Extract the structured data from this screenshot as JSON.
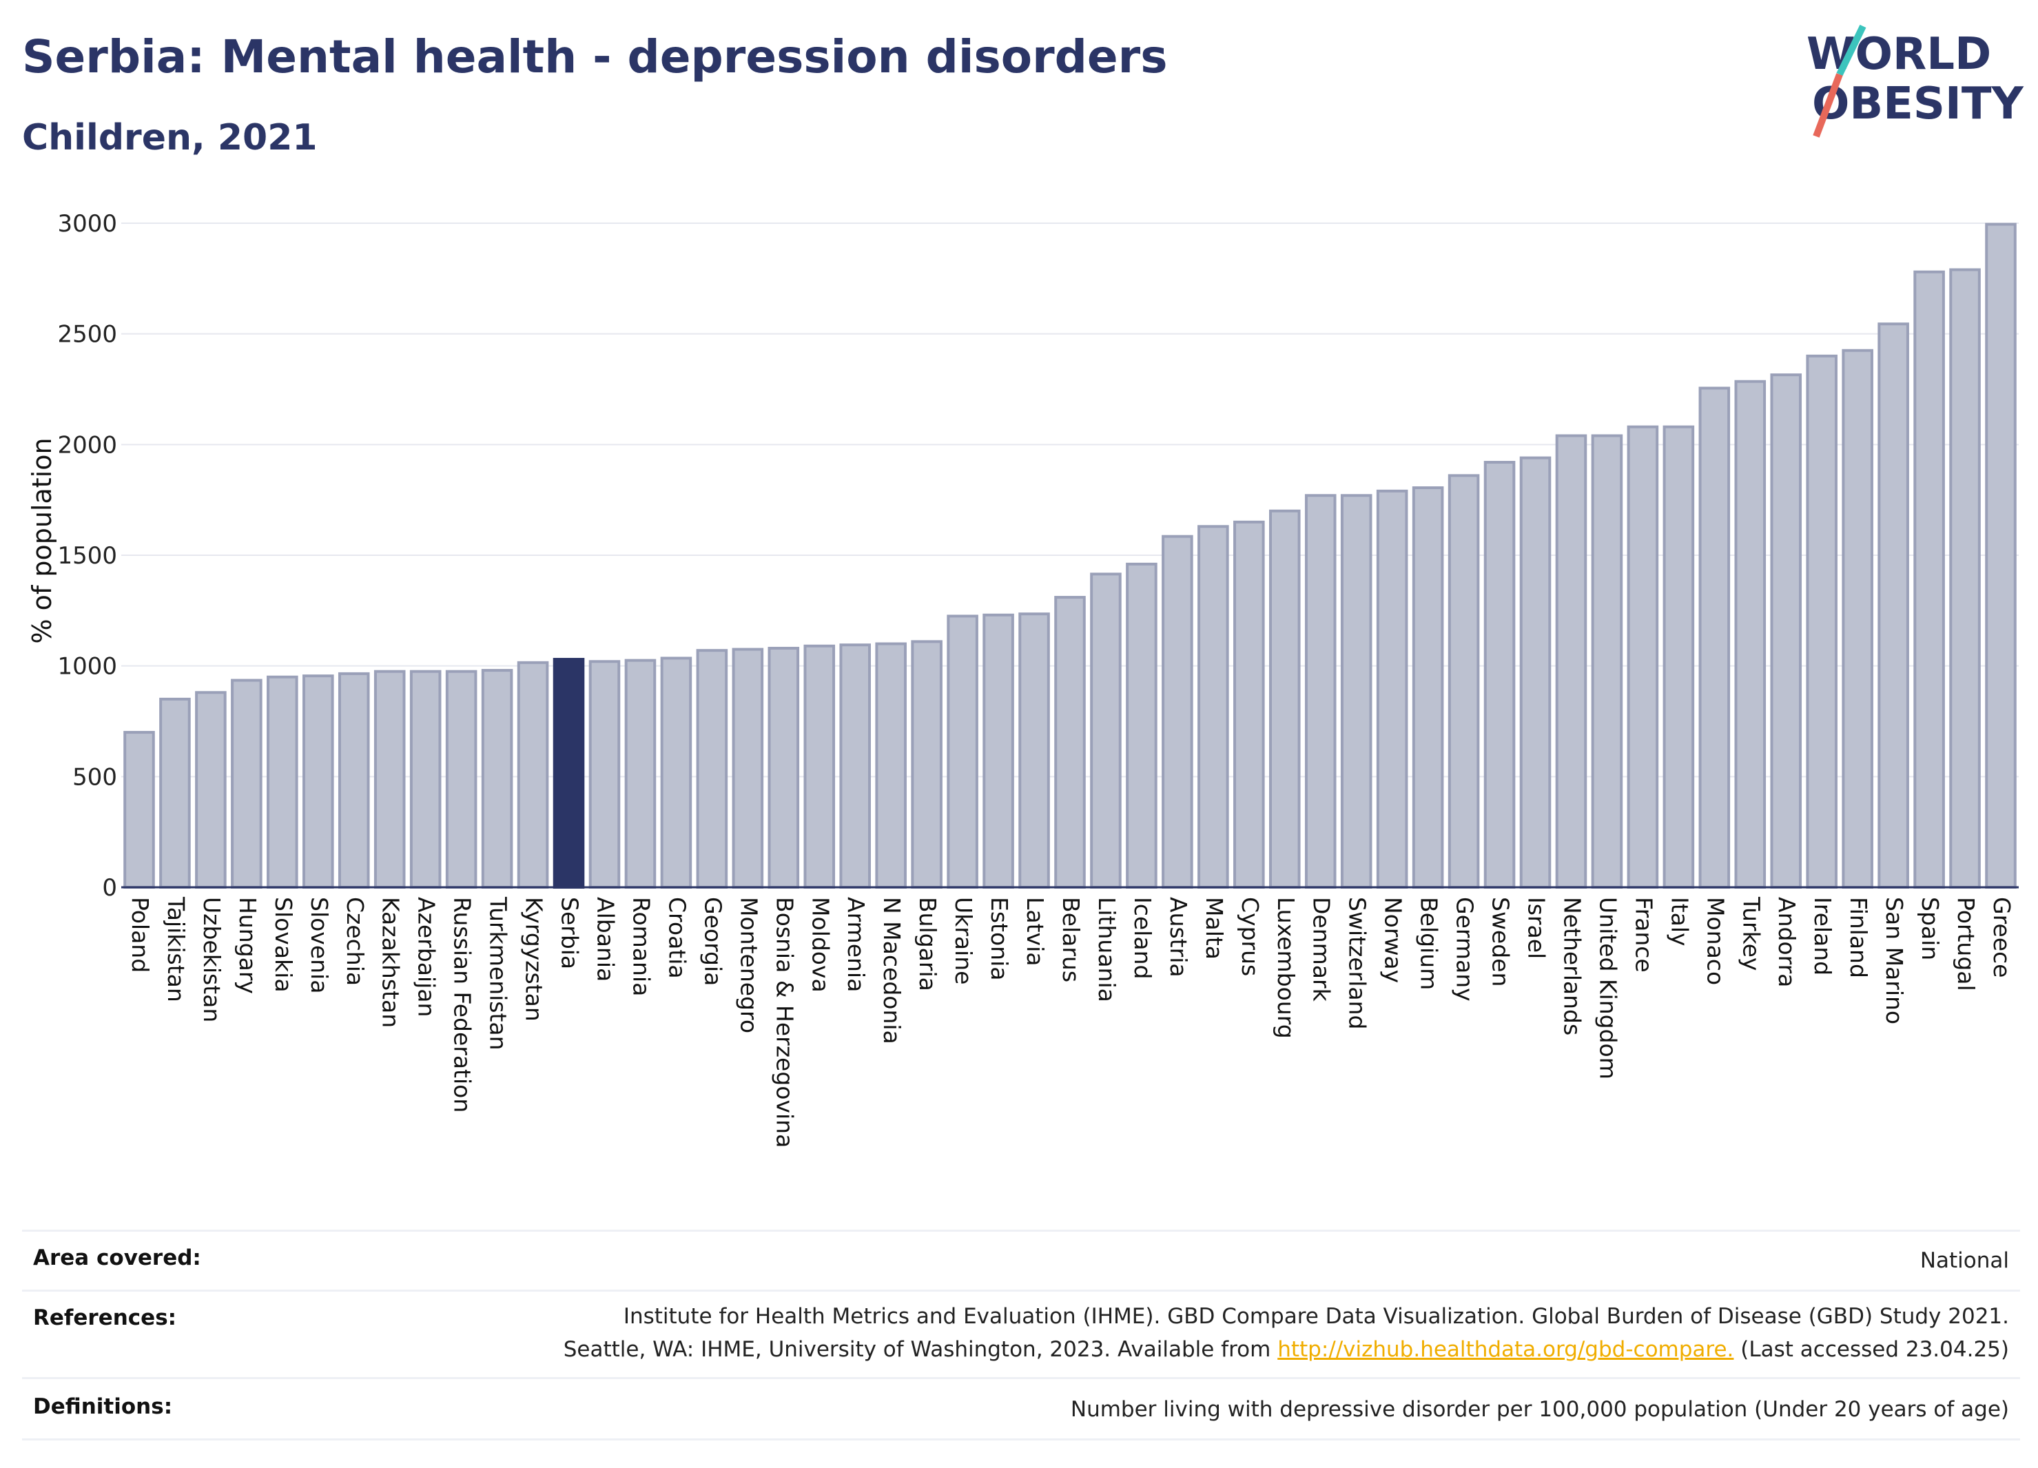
{
  "header": {
    "title": "Serbia: Mental health - depression disorders",
    "subtitle": "Children, 2021"
  },
  "logo": {
    "line1": "WORLD",
    "line2": "OBESITY",
    "colors": {
      "text": "#2b3566",
      "slash_top": "#3cc4bd",
      "slash_bottom": "#e8685a"
    }
  },
  "chart_data": {
    "type": "bar",
    "ylabel": "% of population",
    "xlabel": "",
    "ylim": [
      0,
      3000
    ],
    "yticks": [
      0,
      500,
      1000,
      1500,
      2000,
      2500,
      3000
    ],
    "grid": true,
    "highlight": "Serbia",
    "colors": {
      "bar": "#bcc1d0",
      "bar_edge": "#9aa0b8",
      "highlight": "#2b3566"
    },
    "categories": [
      "Poland",
      "Tajikistan",
      "Uzbekistan",
      "Hungary",
      "Slovakia",
      "Slovenia",
      "Czechia",
      "Kazakhstan",
      "Azerbaijan",
      "Russian Federation",
      "Turkmenistan",
      "Kyrgyzstan",
      "Serbia",
      "Albania",
      "Romania",
      "Croatia",
      "Georgia",
      "Montenegro",
      "Bosnia & Herzegovina",
      "Moldova",
      "Armenia",
      "N Macedonia",
      "Bulgaria",
      "Ukraine",
      "Estonia",
      "Latvia",
      "Belarus",
      "Lithuania",
      "Iceland",
      "Austria",
      "Malta",
      "Cyprus",
      "Luxembourg",
      "Denmark",
      "Switzerland",
      "Norway",
      "Belgium",
      "Germany",
      "Sweden",
      "Israel",
      "Netherlands",
      "United Kingdom",
      "France",
      "Italy",
      "Monaco",
      "Turkey",
      "Andorra",
      "Ireland",
      "Finland",
      "San Marino",
      "Spain",
      "Portugal",
      "Greece"
    ],
    "values": [
      700,
      850,
      880,
      935,
      950,
      955,
      965,
      975,
      975,
      975,
      980,
      1015,
      1030,
      1020,
      1025,
      1035,
      1070,
      1075,
      1080,
      1090,
      1095,
      1100,
      1110,
      1225,
      1230,
      1235,
      1310,
      1415,
      1460,
      1585,
      1630,
      1650,
      1700,
      1770,
      1770,
      1790,
      1805,
      1860,
      1920,
      1940,
      2040,
      2040,
      2080,
      2080,
      2255,
      2285,
      2315,
      2400,
      2425,
      2545,
      2780,
      2790,
      2995
    ]
  },
  "notes": {
    "area_label": "Area covered:",
    "area_value": "National",
    "references_label": "References:",
    "references_line1": "Institute for Health Metrics and Evaluation (IHME). GBD Compare Data Visualization. Global Burden of Disease (GBD) Study 2021.",
    "references_line2_pre": "Seattle, WA: IHME, University of Washington, 2023. Available from",
    "references_link": "http://vizhub.healthdata.org/gbd-compare.",
    "references_line2_post": "(Last accessed 23.04.25)",
    "definitions_label": "Definitions:",
    "definitions_value": "Number living with depressive disorder per 100,000 population (Under 20 years of age)"
  }
}
